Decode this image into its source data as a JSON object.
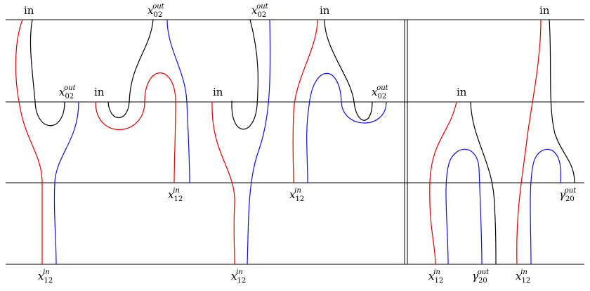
{
  "colors": {
    "line": "#000000",
    "red": "#e00000",
    "blue": "#1010e0",
    "black": "#000000"
  },
  "labels": {
    "in": "in",
    "x02out": {
      "base": "x",
      "sub": "02",
      "sup": "out"
    },
    "x12in": {
      "base": "x",
      "sub": "12",
      "sup": "in"
    },
    "gamma20out": {
      "base": "γ",
      "sub": "20",
      "sup": "out"
    }
  }
}
